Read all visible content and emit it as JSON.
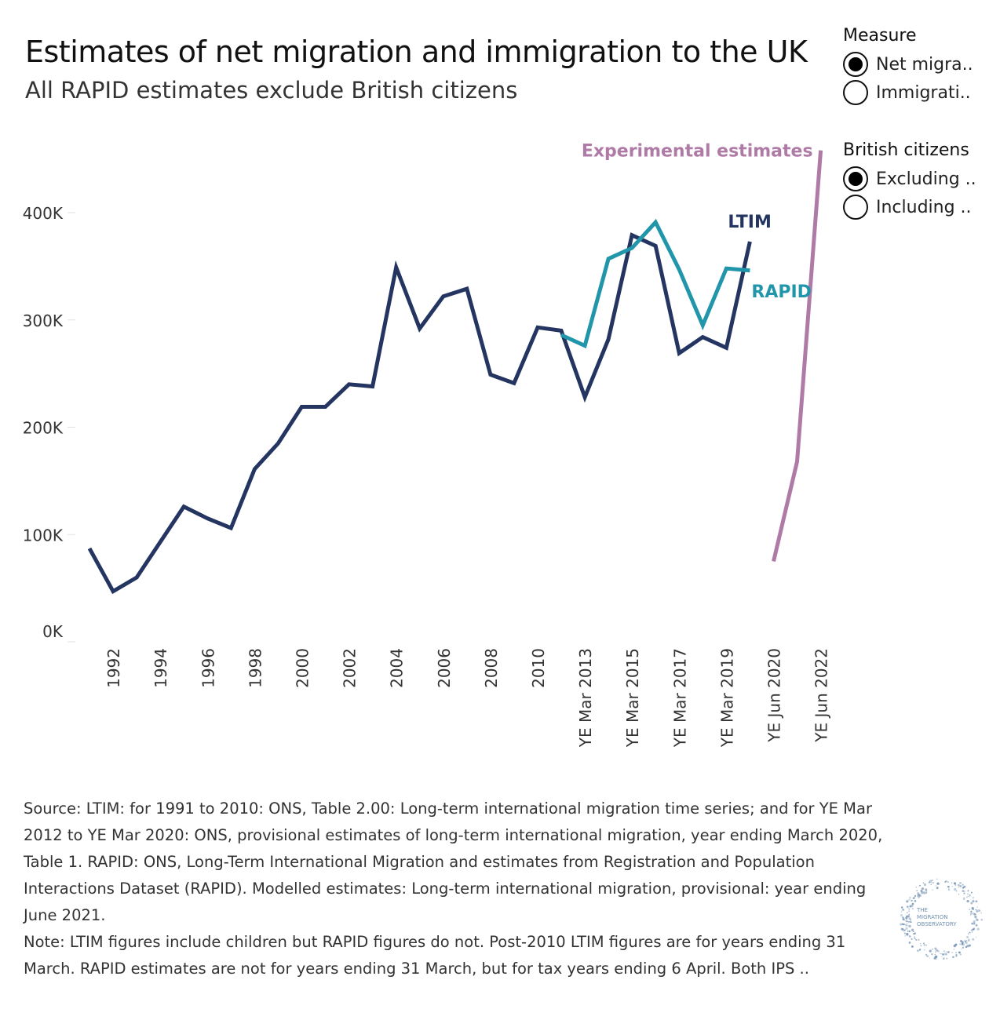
{
  "title": "Estimates of net migration and immigration to the UK",
  "subtitle": "All RAPID estimates exclude British citizens",
  "legend": {
    "measure": {
      "title": "Measure",
      "options": [
        {
          "label": "Net migra..",
          "selected": true
        },
        {
          "label": "Immigrati..",
          "selected": false
        }
      ]
    },
    "british_citizens": {
      "title": "British citizens",
      "options": [
        {
          "label": "Excluding ..",
          "selected": true
        },
        {
          "label": "Including ..",
          "selected": false
        }
      ]
    }
  },
  "chart_data": {
    "type": "line",
    "ylim": [
      0,
      400000
    ],
    "y_ticks": [
      0,
      100000,
      200000,
      300000,
      400000
    ],
    "y_tick_labels": [
      "0K",
      "100K",
      "200K",
      "300K",
      "400K"
    ],
    "x_categories": [
      "1991",
      "1992",
      "1993",
      "1994",
      "1995",
      "1996",
      "1997",
      "1998",
      "1999",
      "2000",
      "2001",
      "2002",
      "2003",
      "2004",
      "2005",
      "2006",
      "2007",
      "2008",
      "2009",
      "2010",
      "YE Mar 2012",
      "YE Mar 2013",
      "YE Mar 2014",
      "YE Mar 2015",
      "YE Mar 2016",
      "YE Mar 2017",
      "YE Mar 2018",
      "YE Mar 2019",
      "YE Mar 2020",
      "YE Jun 2020",
      "YE Jun 2021",
      "YE Jun 2022"
    ],
    "x_tick_labels": [
      "1992",
      "1994",
      "1996",
      "1998",
      "2000",
      "2002",
      "2004",
      "2006",
      "2008",
      "2010",
      "YE Mar 2013",
      "YE Mar 2015",
      "YE Mar 2017",
      "YE Mar 2019",
      "YE Jun 2020",
      "YE Jun 2022"
    ],
    "series": [
      {
        "name": "LTIM",
        "color": "#233560",
        "points": [
          [
            "1991",
            87000
          ],
          [
            "1992",
            47000
          ],
          [
            "1993",
            60000
          ],
          [
            "1994",
            93000
          ],
          [
            "1995",
            126000
          ],
          [
            "1996",
            115000
          ],
          [
            "1997",
            106000
          ],
          [
            "1998",
            161000
          ],
          [
            "1999",
            185000
          ],
          [
            "2000",
            219000
          ],
          [
            "2001",
            219000
          ],
          [
            "2002",
            240000
          ],
          [
            "2003",
            238000
          ],
          [
            "2004",
            349000
          ],
          [
            "2005",
            292000
          ],
          [
            "2006",
            322000
          ],
          [
            "2007",
            329000
          ],
          [
            "2008",
            249000
          ],
          [
            "2009",
            241000
          ],
          [
            "2010",
            293000
          ],
          [
            "YE Mar 2012",
            290000
          ],
          [
            "YE Mar 2013",
            228000
          ],
          [
            "YE Mar 2014",
            282000
          ],
          [
            "YE Mar 2015",
            379000
          ],
          [
            "YE Mar 2016",
            369000
          ],
          [
            "YE Mar 2017",
            269000
          ],
          [
            "YE Mar 2018",
            284000
          ],
          [
            "YE Mar 2019",
            274000
          ],
          [
            "YE Mar 2020",
            373000
          ]
        ]
      },
      {
        "name": "RAPID",
        "color": "#2196aa",
        "points": [
          [
            "YE Mar 2012",
            286000
          ],
          [
            "YE Mar 2013",
            276000
          ],
          [
            "YE Mar 2014",
            357000
          ],
          [
            "YE Mar 2015",
            367000
          ],
          [
            "YE Mar 2016",
            391000
          ],
          [
            "YE Mar 2017",
            347000
          ],
          [
            "YE Mar 2018",
            295000
          ],
          [
            "YE Mar 2019",
            348000
          ],
          [
            "YE Mar 2020",
            346000
          ]
        ]
      },
      {
        "name": "Experimental estimates",
        "color": "#b07aa6",
        "points": [
          [
            "YE Jun 2020",
            75000
          ],
          [
            "YE Jun 2021",
            168000
          ],
          [
            "YE Jun 2022",
            458000
          ]
        ]
      }
    ]
  },
  "footnote": {
    "source": "Source: LTIM: for 1991 to 2010: ONS, Table 2.00: Long-term international migration time series; and for YE Mar 2012 to YE Mar 2020: ONS, provisional estimates of long-term international migration, year ending March 2020, Table 1. RAPID: ONS, Long-Term International Migration and estimates from Registration and Population Interactions Dataset (RAPID). Modelled estimates: Long-term international migration, provisional: year ending June 2021.",
    "note": "Note: LTIM figures include children but RAPID figures do not. Post-2010 LTIM figures are for years ending 31 March. RAPID estimates are not for years ending 31 March, but for tax years ending 6 April. Both IPS .."
  },
  "logo": {
    "line1": "THE",
    "line2": "MIGRATION",
    "line3": "OBSERVATORY",
    "color": "#6e8fb0"
  }
}
